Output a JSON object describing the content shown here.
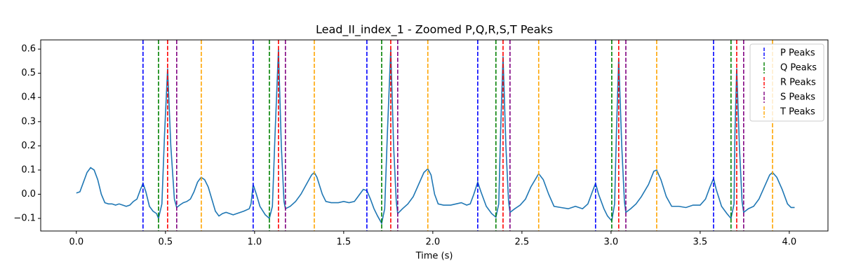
{
  "chart_data": {
    "type": "line",
    "title": "Lead_II_index_1 - Zoomed P,Q,R,S,T Peaks",
    "xlabel": "Time (s)",
    "color": "#1f77b4",
    "x": [
      0.0,
      0.02,
      0.04,
      0.06,
      0.08,
      0.1,
      0.12,
      0.14,
      0.16,
      0.18,
      0.2,
      0.22,
      0.24,
      0.26,
      0.28,
      0.3,
      0.32,
      0.34,
      0.36,
      0.374,
      0.39,
      0.41,
      0.43,
      0.45,
      0.461,
      0.48,
      0.495,
      0.512,
      0.53,
      0.55,
      0.563,
      0.58,
      0.6,
      0.62,
      0.64,
      0.66,
      0.68,
      0.7,
      0.72,
      0.74,
      0.76,
      0.78,
      0.8,
      0.82,
      0.84,
      0.86,
      0.88,
      0.9,
      0.94,
      0.97,
      0.98,
      0.992,
      1.01,
      1.03,
      1.06,
      1.083,
      1.1,
      1.115,
      1.134,
      1.15,
      1.165,
      1.173,
      1.2,
      1.23,
      1.26,
      1.29,
      1.32,
      1.335,
      1.35,
      1.38,
      1.4,
      1.43,
      1.47,
      1.5,
      1.53,
      1.56,
      1.59,
      1.61,
      1.63,
      1.65,
      1.67,
      1.69,
      1.713,
      1.73,
      1.745,
      1.764,
      1.78,
      1.795,
      1.803,
      1.83,
      1.86,
      1.89,
      1.92,
      1.95,
      1.972,
      1.99,
      2.01,
      2.03,
      2.06,
      2.1,
      2.13,
      2.16,
      2.19,
      2.21,
      2.23,
      2.252,
      2.27,
      2.3,
      2.33,
      2.354,
      2.37,
      2.38,
      2.394,
      2.41,
      2.425,
      2.433,
      2.46,
      2.49,
      2.52,
      2.55,
      2.594,
      2.62,
      2.65,
      2.68,
      2.72,
      2.76,
      2.8,
      2.84,
      2.87,
      2.895,
      2.913,
      2.93,
      2.96,
      2.98,
      3.004,
      3.02,
      3.03,
      3.043,
      3.06,
      3.075,
      3.083,
      3.11,
      3.14,
      3.17,
      3.21,
      3.24,
      3.256,
      3.28,
      3.31,
      3.34,
      3.38,
      3.42,
      3.46,
      3.5,
      3.53,
      3.555,
      3.575,
      3.59,
      3.62,
      3.65,
      3.673,
      3.69,
      3.695,
      3.705,
      3.72,
      3.735,
      3.744,
      3.77,
      3.8,
      3.83,
      3.86,
      3.89,
      3.906,
      3.93,
      3.96,
      3.99,
      4.01,
      4.03
    ],
    "values": [
      0.005,
      0.01,
      0.05,
      0.09,
      0.11,
      0.1,
      0.06,
      0.0,
      -0.035,
      -0.04,
      -0.04,
      -0.045,
      -0.04,
      -0.045,
      -0.05,
      -0.045,
      -0.03,
      -0.02,
      0.02,
      0.045,
      0.01,
      -0.05,
      -0.07,
      -0.08,
      -0.1,
      -0.04,
      0.25,
      0.52,
      0.2,
      -0.02,
      -0.055,
      -0.045,
      -0.035,
      -0.03,
      -0.02,
      0.01,
      0.05,
      0.07,
      0.06,
      0.03,
      -0.02,
      -0.07,
      -0.09,
      -0.08,
      -0.075,
      -0.08,
      -0.085,
      -0.08,
      -0.07,
      -0.06,
      -0.04,
      0.04,
      0.0,
      -0.05,
      -0.085,
      -0.1,
      -0.05,
      0.25,
      0.6,
      0.2,
      -0.03,
      -0.06,
      -0.05,
      -0.03,
      0.0,
      0.04,
      0.08,
      0.09,
      0.07,
      0.0,
      -0.03,
      -0.035,
      -0.035,
      -0.03,
      -0.035,
      -0.03,
      0.0,
      0.02,
      0.015,
      -0.02,
      -0.06,
      -0.09,
      -0.12,
      -0.06,
      0.25,
      0.6,
      0.2,
      -0.03,
      -0.08,
      -0.06,
      -0.04,
      -0.01,
      0.04,
      0.09,
      0.105,
      0.08,
      0.0,
      -0.04,
      -0.045,
      -0.045,
      -0.04,
      -0.035,
      -0.045,
      -0.04,
      0.0,
      0.05,
      0.01,
      -0.05,
      -0.08,
      -0.095,
      -0.04,
      0.25,
      0.57,
      0.2,
      -0.03,
      -0.075,
      -0.06,
      -0.045,
      -0.02,
      0.03,
      0.085,
      0.06,
      0.0,
      -0.05,
      -0.055,
      -0.06,
      -0.05,
      -0.06,
      -0.04,
      0.01,
      0.045,
      0.0,
      -0.06,
      -0.09,
      -0.11,
      -0.04,
      0.25,
      0.56,
      0.2,
      -0.03,
      -0.075,
      -0.06,
      -0.04,
      -0.01,
      0.04,
      0.095,
      0.1,
      0.06,
      -0.01,
      -0.05,
      -0.05,
      -0.055,
      -0.045,
      -0.045,
      -0.02,
      0.03,
      0.065,
      0.02,
      -0.05,
      -0.08,
      -0.1,
      -0.04,
      0.25,
      0.52,
      0.2,
      -0.03,
      -0.075,
      -0.06,
      -0.05,
      -0.02,
      0.03,
      0.08,
      0.09,
      0.07,
      0.02,
      -0.04,
      -0.055,
      -0.055
    ],
    "peaks": [
      {
        "name": "P Peaks",
        "color": "#0000ff",
        "x": [
          0.374,
          0.992,
          1.63,
          2.252,
          2.913,
          3.575
        ]
      },
      {
        "name": "Q Peaks",
        "color": "#008000",
        "x": [
          0.461,
          1.083,
          1.713,
          2.354,
          3.004,
          3.673
        ]
      },
      {
        "name": "R Peaks",
        "color": "#ff0000",
        "x": [
          0.512,
          1.134,
          1.764,
          2.394,
          3.043,
          3.705
        ]
      },
      {
        "name": "S Peaks",
        "color": "#800080",
        "x": [
          0.563,
          1.173,
          1.803,
          2.433,
          3.083,
          3.744
        ]
      },
      {
        "name": "T Peaks",
        "color": "#ffa500",
        "x": [
          0.701,
          1.335,
          1.972,
          2.594,
          3.256,
          3.906
        ]
      }
    ],
    "xlim": [
      -0.2,
      4.217
    ],
    "ylim": [
      -0.152,
      0.638
    ],
    "xticks": [
      {
        "value": 0,
        "label": "0.0"
      },
      0.5,
      {
        "value": 1,
        "label": "1.0"
      },
      1.5,
      {
        "value": 2,
        "label": "2.0"
      },
      2.5,
      {
        "value": 3,
        "label": "3.0"
      },
      3.5,
      {
        "value": 4,
        "label": "4.0"
      }
    ],
    "yticks": [
      {
        "value": -0.1,
        "label": "−0.1"
      },
      {
        "value": 0,
        "label": "0.0"
      },
      0.1,
      0.2,
      0.3,
      0.4,
      0.5,
      0.6
    ],
    "legend": "upper right"
  }
}
